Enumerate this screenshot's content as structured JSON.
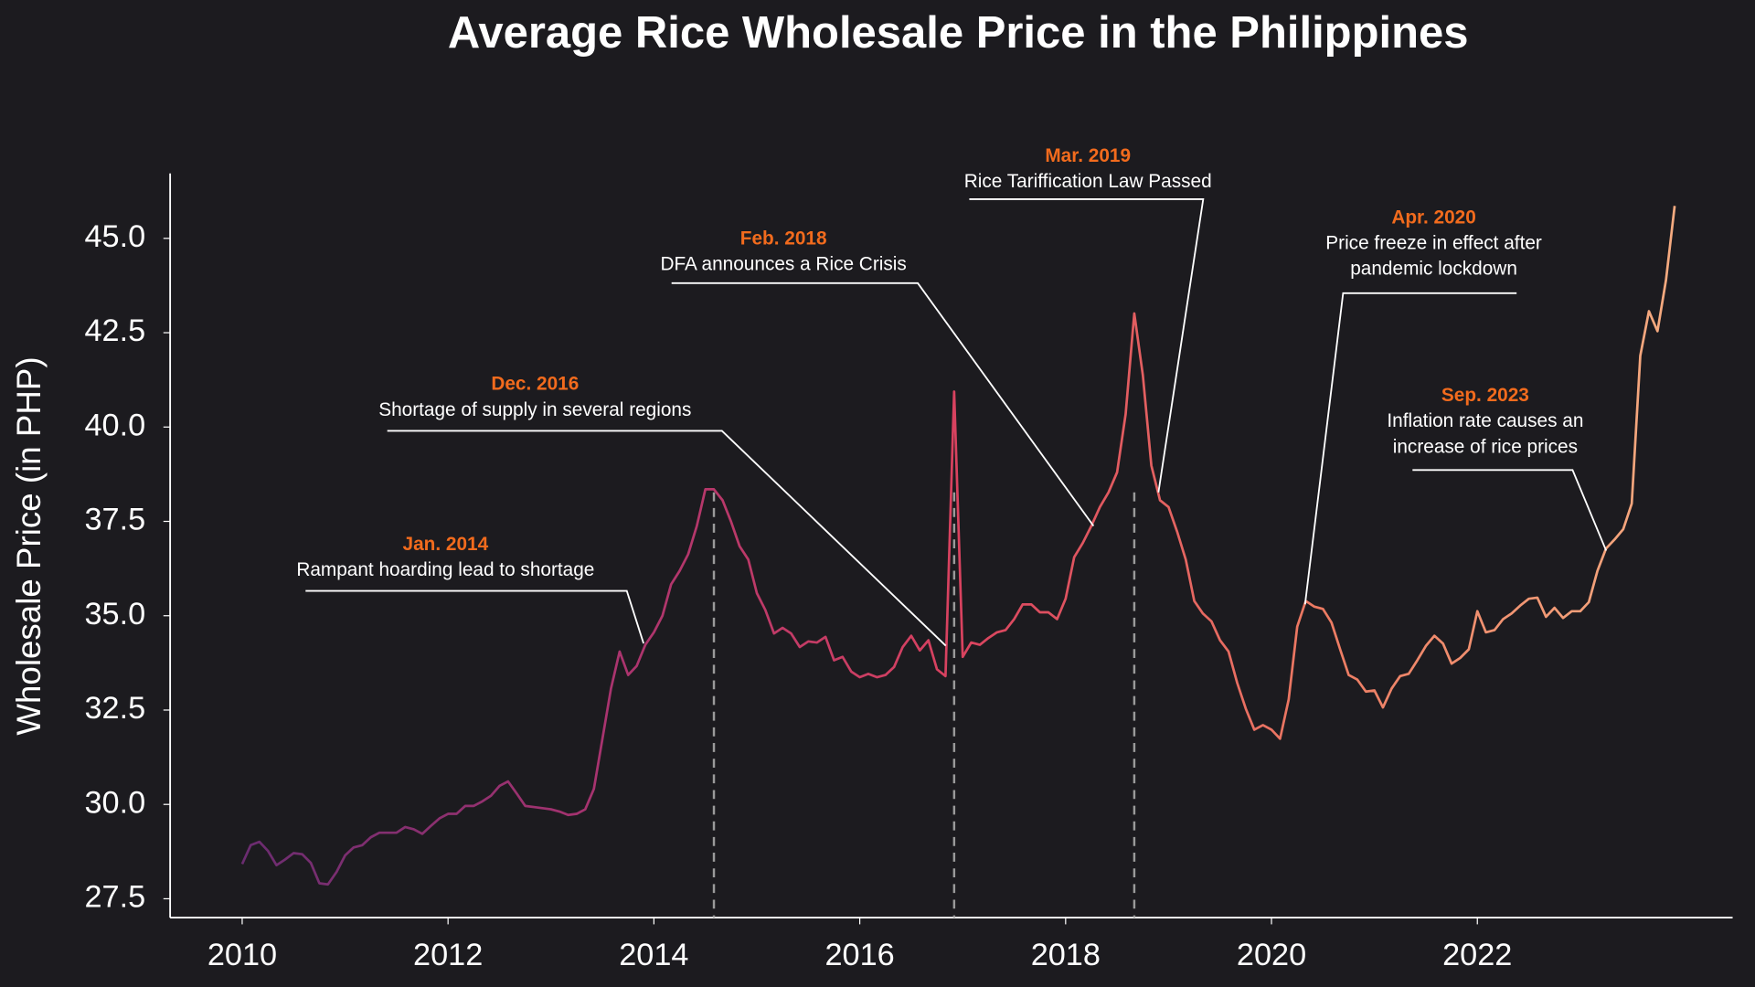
{
  "chart_data": {
    "type": "line",
    "title": "Average Rice Wholesale Price in the Philippines",
    "y_label": "Wholesale Price (in PHP)",
    "x": [
      2010,
      2010.083,
      2010.167,
      2010.25,
      2010.333,
      2010.417,
      2010.5,
      2010.583,
      2010.667,
      2010.75,
      2010.833,
      2010.917,
      2011,
      2011.083,
      2011.167,
      2011.25,
      2011.333,
      2011.417,
      2011.5,
      2011.583,
      2011.667,
      2011.75,
      2011.833,
      2011.917,
      2012,
      2012.083,
      2012.167,
      2012.25,
      2012.333,
      2012.417,
      2012.5,
      2012.583,
      2012.667,
      2012.75,
      2012.833,
      2012.917,
      2013,
      2013.083,
      2013.167,
      2013.25,
      2013.333,
      2013.417,
      2013.5,
      2013.583,
      2013.667,
      2013.75,
      2013.833,
      2013.917,
      2014,
      2014.083,
      2014.167,
      2014.25,
      2014.333,
      2014.417,
      2014.5,
      2014.583,
      2014.667,
      2014.75,
      2014.833,
      2014.917,
      2015,
      2015.083,
      2015.167,
      2015.25,
      2015.333,
      2015.417,
      2015.5,
      2015.583,
      2015.667,
      2015.75,
      2015.833,
      2015.917,
      2016,
      2016.083,
      2016.167,
      2016.25,
      2016.333,
      2016.417,
      2016.5,
      2016.583,
      2016.667,
      2016.75,
      2016.833,
      2016.917,
      2017,
      2017.083,
      2017.167,
      2017.25,
      2017.333,
      2017.417,
      2017.5,
      2017.583,
      2017.667,
      2017.75,
      2017.833,
      2017.917,
      2018,
      2018.083,
      2018.167,
      2018.25,
      2018.333,
      2018.417,
      2018.5,
      2018.583,
      2018.667,
      2018.75,
      2018.833,
      2018.917,
      2019,
      2019.083,
      2019.167,
      2019.25,
      2019.333,
      2019.417,
      2019.5,
      2019.583,
      2019.667,
      2019.75,
      2019.833,
      2019.917,
      2020,
      2020.083,
      2020.167,
      2020.25,
      2020.333,
      2020.417,
      2020.5,
      2020.583,
      2020.667,
      2020.75,
      2020.833,
      2020.917,
      2021,
      2021.083,
      2021.167,
      2021.25,
      2021.333,
      2021.417,
      2021.5,
      2021.583,
      2021.667,
      2021.75,
      2021.833,
      2021.917,
      2022,
      2022.083,
      2022.167,
      2022.25,
      2022.333,
      2022.417,
      2022.5,
      2022.583,
      2022.667,
      2022.75,
      2022.833,
      2022.917,
      2023,
      2023.083,
      2023.167,
      2023.25,
      2023.333,
      2023.417,
      2023.5,
      2023.583,
      2023.667,
      2023.75,
      2023.833,
      2023.917
    ],
    "values": [
      28.42,
      28.92,
      29.01,
      28.77,
      28.39,
      28.54,
      28.71,
      28.68,
      28.45,
      27.91,
      27.88,
      28.21,
      28.65,
      28.86,
      28.92,
      29.13,
      29.25,
      29.25,
      29.25,
      29.4,
      29.34,
      29.22,
      29.43,
      29.63,
      29.75,
      29.75,
      29.96,
      29.96,
      30.08,
      30.23,
      30.49,
      30.61,
      30.29,
      29.96,
      29.93,
      29.9,
      29.87,
      29.81,
      29.72,
      29.75,
      29.87,
      30.41,
      31.74,
      33.07,
      34.05,
      33.43,
      33.67,
      34.23,
      34.56,
      35,
      35.83,
      36.19,
      36.63,
      37.38,
      38.35,
      38.35,
      38.06,
      37.49,
      36.84,
      36.49,
      35.6,
      35.15,
      34.53,
      34.68,
      34.53,
      34.17,
      34.32,
      34.29,
      34.44,
      33.82,
      33.91,
      33.52,
      33.37,
      33.46,
      33.37,
      33.43,
      33.64,
      34.17,
      34.47,
      34.08,
      34.35,
      33.58,
      33.4,
      40.94,
      33.91,
      34.29,
      34.23,
      34.41,
      34.56,
      34.62,
      34.91,
      35.3,
      35.3,
      35.09,
      35.09,
      34.91,
      35.45,
      36.55,
      36.93,
      37.38,
      37.88,
      38.27,
      38.8,
      40.34,
      43.01,
      41.38,
      38.98,
      38.06,
      37.88,
      37.23,
      36.49,
      35.39,
      35.06,
      34.85,
      34.35,
      34.05,
      33.22,
      32.54,
      31.98,
      32.1,
      31.98,
      31.74,
      32.78,
      34.71,
      35.39,
      35.24,
      35.18,
      34.82,
      34.11,
      33.43,
      33.31,
      32.99,
      33.02,
      32.57,
      33.07,
      33.4,
      33.46,
      33.82,
      34.2,
      34.47,
      34.26,
      33.73,
      33.88,
      34.11,
      35.12,
      34.56,
      34.62,
      34.91,
      35.06,
      35.27,
      35.45,
      35.48,
      34.97,
      35.21,
      34.94,
      35.12,
      35.12,
      35.36,
      36.19,
      36.78,
      37.02,
      37.29,
      37.97,
      41.89,
      43.07,
      42.54,
      43.9,
      45.86
    ],
    "colors": [
      "#6a2c70",
      "#a8336f",
      "#d9425f",
      "#ec7a62",
      "#f5ab80"
    ],
    "xlim": [
      2009.3,
      2024.48
    ],
    "xticks": [
      2010,
      2012,
      2014,
      2016,
      2018,
      2020,
      2022
    ],
    "ylim": [
      27,
      46.72
    ],
    "yticks": [
      27.5,
      {
        "value": 30,
        "label": "30.0"
      },
      32.5,
      35,
      {
        "value": 35,
        "label": "35.0"
      },
      37.5,
      {
        "value": 40,
        "label": "40.0"
      },
      42.5,
      {
        "value": 45,
        "label": "45.0"
      }
    ],
    "reference_lines": [
      2014.583,
      2016.917,
      2018.667
    ],
    "annotations": [
      {
        "date": "Jan. 2014",
        "text": [
          "Rampant hoarding lead to shortage"
        ]
      },
      {
        "date": "Dec. 2016",
        "text": [
          "Shortage of supply in several regions"
        ]
      },
      {
        "date": "Feb. 2018",
        "text": [
          "DFA announces a Rice Crisis"
        ]
      },
      {
        "date": "Mar. 2019",
        "text": [
          "Rice Tariffication Law Passed"
        ]
      },
      {
        "date": "Apr. 2020",
        "text": [
          "Price freeze in effect after",
          "pandemic lockdown"
        ]
      },
      {
        "date": "Sep. 2023",
        "text": [
          "Inflation rate causes an",
          "increase of rice prices"
        ]
      }
    ]
  }
}
